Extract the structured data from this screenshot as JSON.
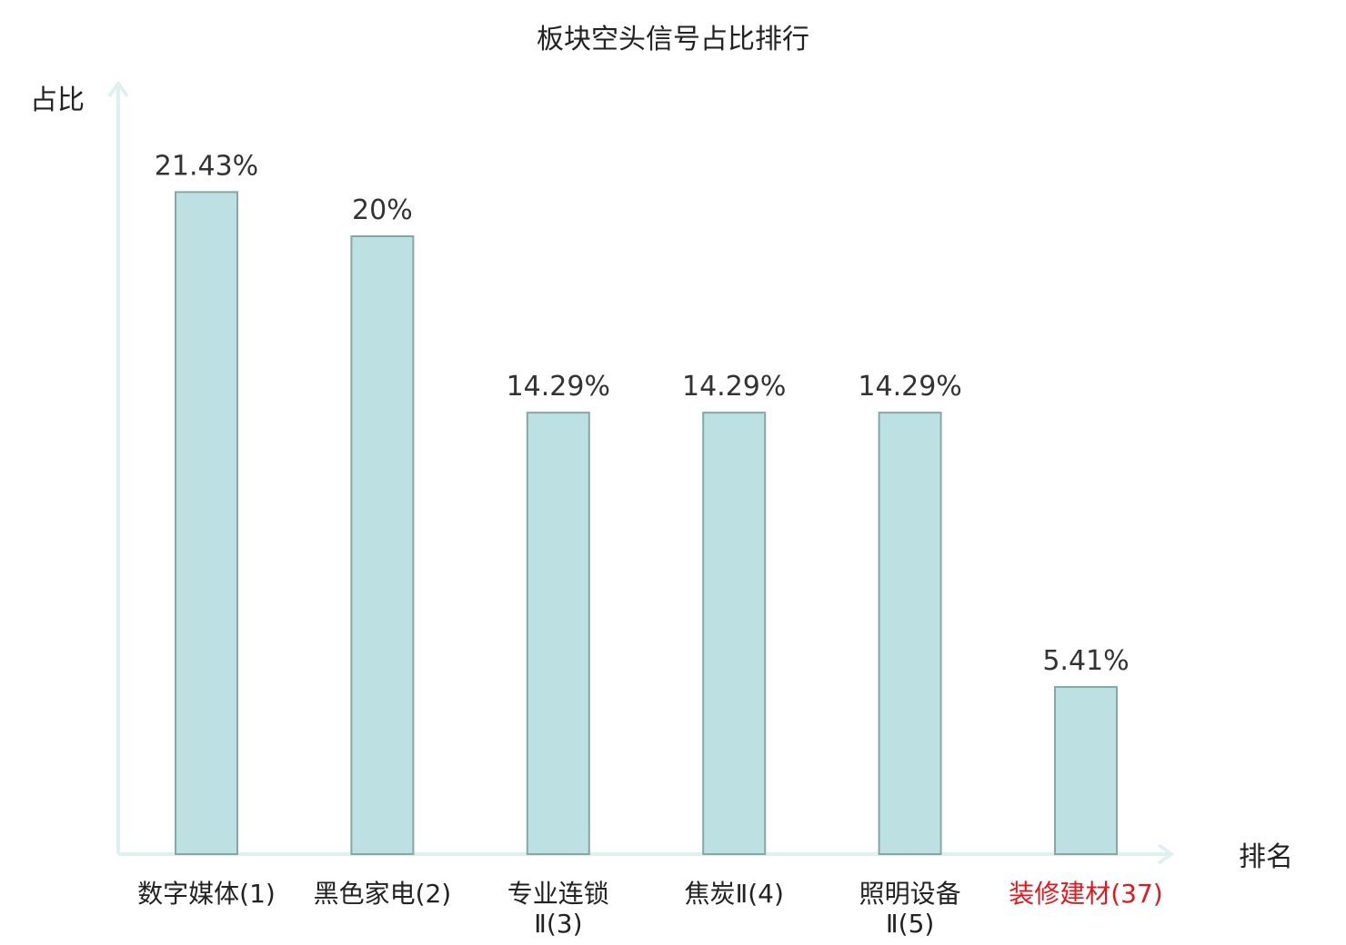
{
  "chart_data": {
    "type": "bar",
    "title": "板块空头信号占比排行",
    "ylabel": "占比",
    "xlabel": "排名",
    "categories": [
      {
        "lines": [
          "数字媒体(1)"
        ],
        "highlight": false
      },
      {
        "lines": [
          "黑色家电(2)"
        ],
        "highlight": false
      },
      {
        "lines": [
          "专业连锁",
          "Ⅱ(3)"
        ],
        "highlight": false
      },
      {
        "lines": [
          "焦炭Ⅱ(4)"
        ],
        "highlight": false
      },
      {
        "lines": [
          "照明设备",
          "Ⅱ(5)"
        ],
        "highlight": false
      },
      {
        "lines": [
          "装修建材(37)"
        ],
        "highlight": true
      }
    ],
    "values": [
      21.43,
      20,
      14.29,
      14.29,
      14.29,
      5.41
    ],
    "value_labels": [
      "21.43%",
      "20%",
      "14.29%",
      "14.29%",
      "14.29%",
      "5.41%"
    ],
    "ylim": [
      0,
      25
    ],
    "grid": false,
    "colors": {
      "bar_fill": "#bde1e3",
      "bar_stroke": "#86a7a8",
      "axis": "#dff1ee",
      "highlight": "#e0191f"
    }
  }
}
